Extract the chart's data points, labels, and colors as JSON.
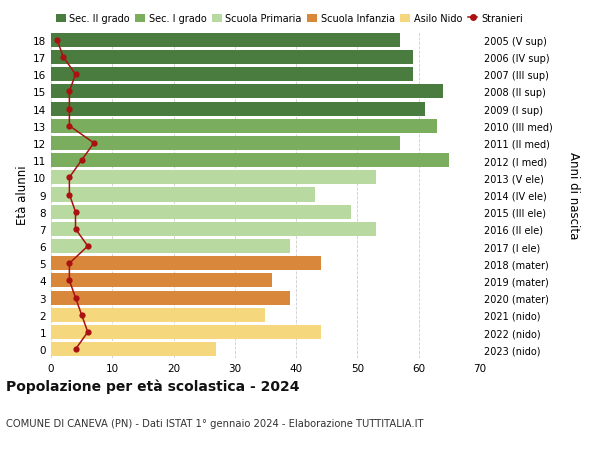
{
  "ages": [
    18,
    17,
    16,
    15,
    14,
    13,
    12,
    11,
    10,
    9,
    8,
    7,
    6,
    5,
    4,
    3,
    2,
    1,
    0
  ],
  "bar_values": [
    57,
    59,
    59,
    64,
    61,
    63,
    57,
    65,
    53,
    43,
    49,
    53,
    39,
    44,
    36,
    39,
    35,
    44,
    27
  ],
  "stranieri_values": [
    1,
    2,
    4,
    3,
    3,
    3,
    7,
    5,
    3,
    3,
    4,
    4,
    6,
    3,
    3,
    4,
    5,
    6,
    4
  ],
  "right_labels": [
    "2005 (V sup)",
    "2006 (IV sup)",
    "2007 (III sup)",
    "2008 (II sup)",
    "2009 (I sup)",
    "2010 (III med)",
    "2011 (II med)",
    "2012 (I med)",
    "2013 (V ele)",
    "2014 (IV ele)",
    "2015 (III ele)",
    "2016 (II ele)",
    "2017 (I ele)",
    "2018 (mater)",
    "2019 (mater)",
    "2020 (mater)",
    "2021 (nido)",
    "2022 (nido)",
    "2023 (nido)"
  ],
  "bar_colors": [
    "#4a7c3f",
    "#4a7c3f",
    "#4a7c3f",
    "#4a7c3f",
    "#4a7c3f",
    "#7aad5e",
    "#7aad5e",
    "#7aad5e",
    "#b8d9a0",
    "#b8d9a0",
    "#b8d9a0",
    "#b8d9a0",
    "#b8d9a0",
    "#d9873a",
    "#d9873a",
    "#d9873a",
    "#f5d87e",
    "#f5d87e",
    "#f5d87e"
  ],
  "legend_labels": [
    "Sec. II grado",
    "Sec. I grado",
    "Scuola Primaria",
    "Scuola Infanzia",
    "Asilo Nido",
    "Stranieri"
  ],
  "legend_colors": [
    "#4a7c3f",
    "#7aad5e",
    "#b8d9a0",
    "#d9873a",
    "#f5d87e",
    "#cc2222"
  ],
  "title_bold": "Popolazione per età scolastica - 2024",
  "title_sub": "COMUNE DI CANEVA (PN) - Dati ISTAT 1° gennaio 2024 - Elaborazione TUTTITALIA.IT",
  "ylabel_left": "Età alunni",
  "ylabel_right": "Anni di nascita",
  "xlim": [
    0,
    70
  ],
  "xticks": [
    0,
    10,
    20,
    30,
    40,
    50,
    60,
    70
  ],
  "background_color": "#ffffff",
  "grid_color": "#cccccc",
  "stranieri_color": "#aa1111",
  "bar_height": 0.82
}
